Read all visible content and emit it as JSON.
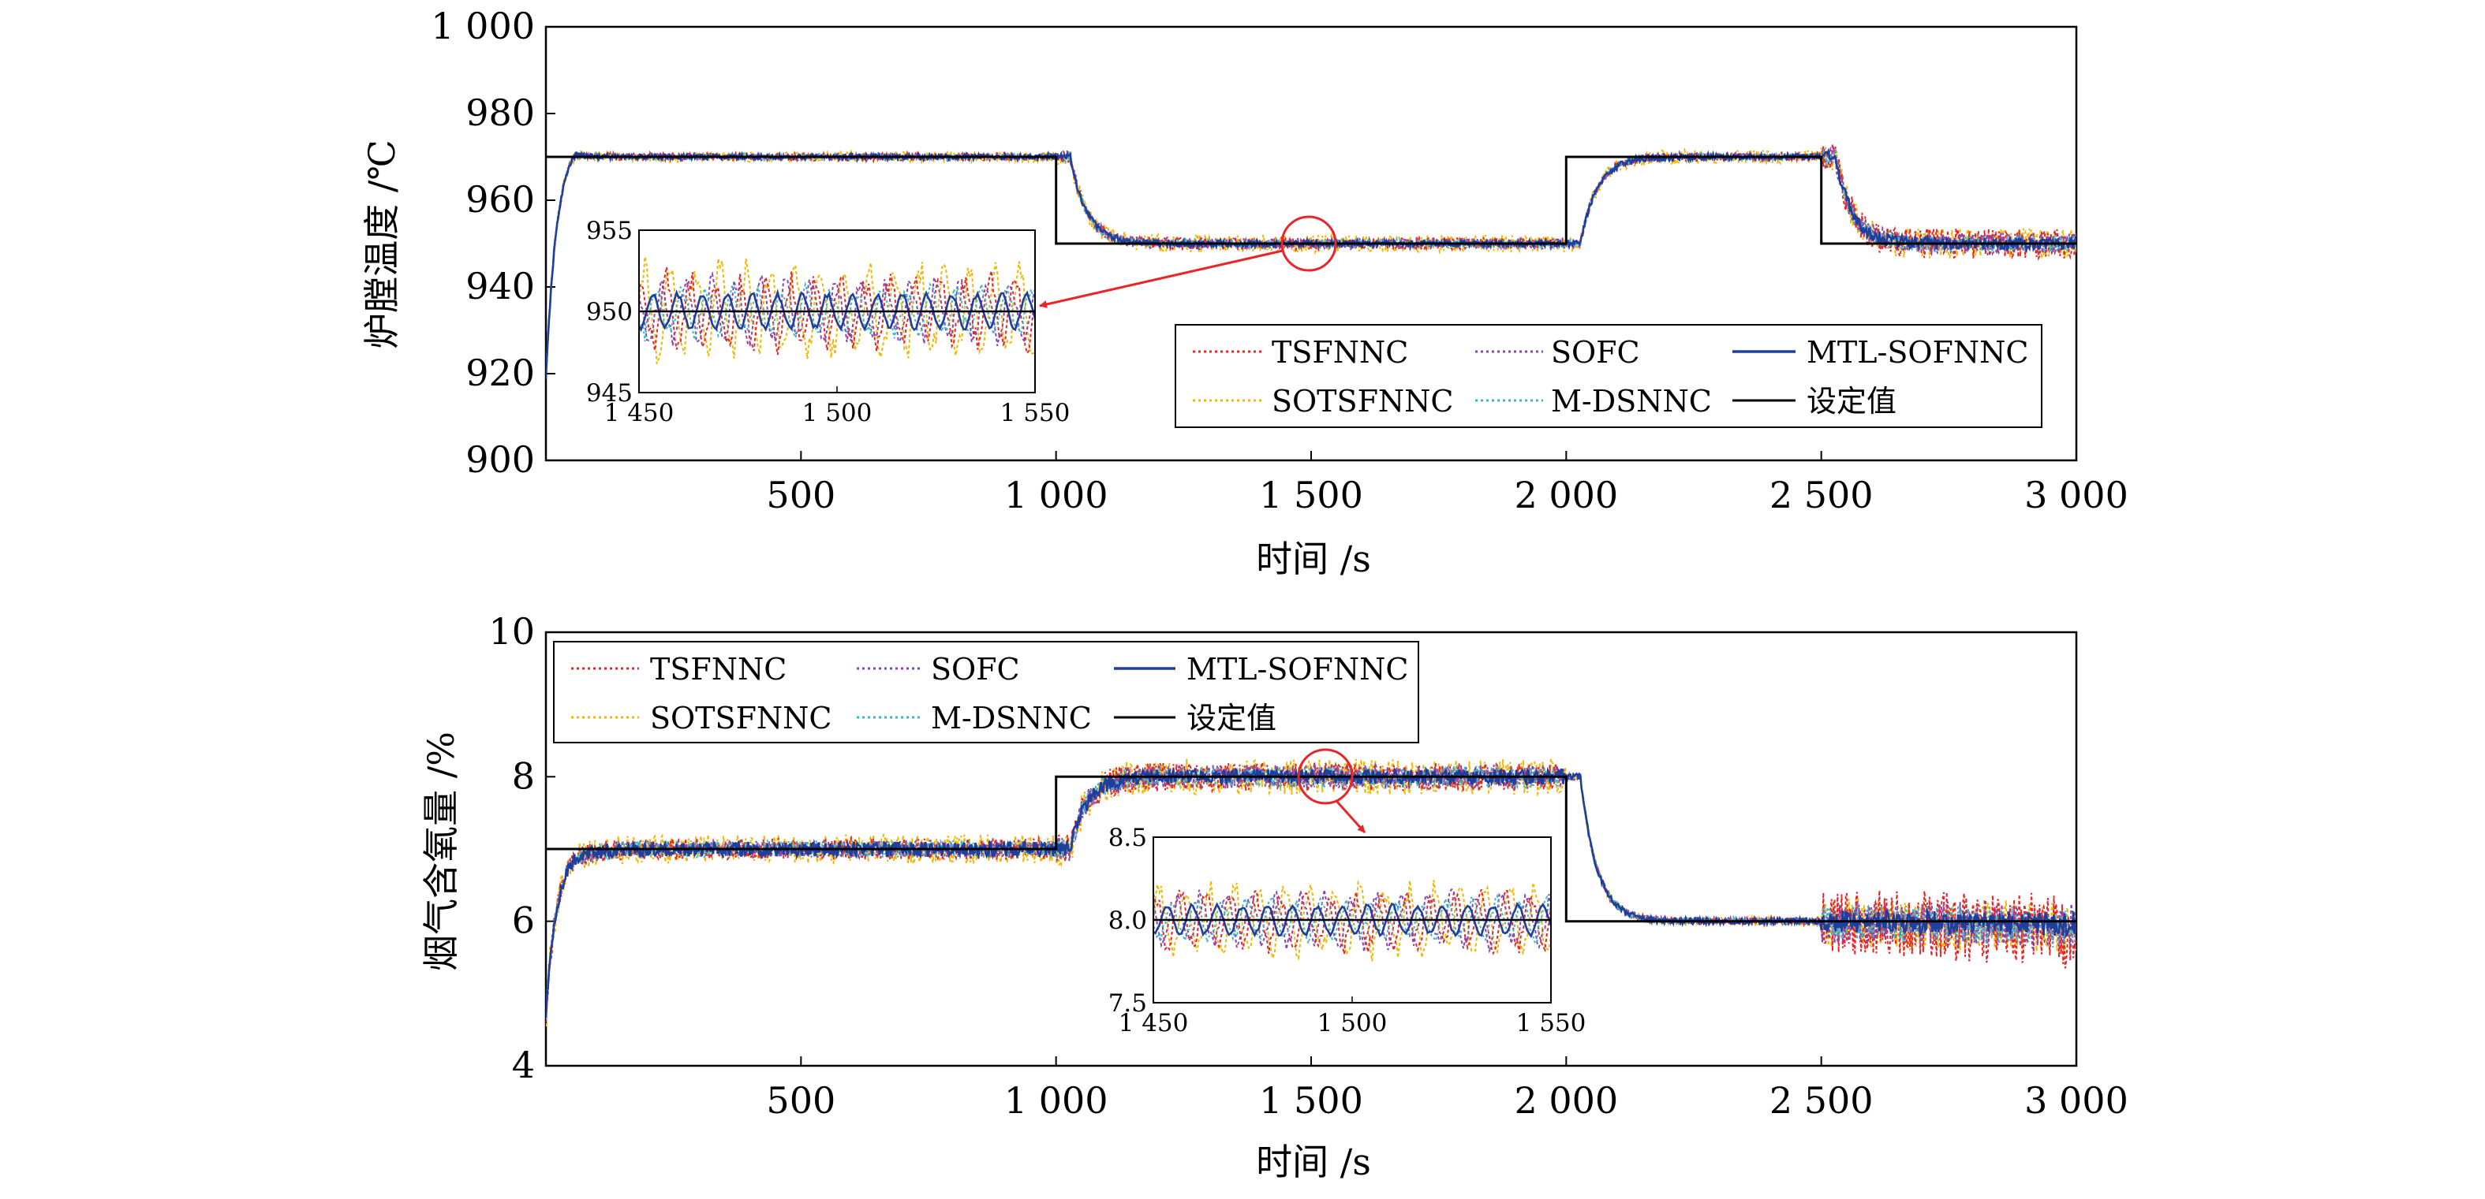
{
  "colors": {
    "TSFNNC": "#e8262a",
    "SOFC": "#8e44ad",
    "MTL-SOFNNC": "#1f3f9e",
    "SOTSFNNC": "#f2b705",
    "M-DSNNC": "#3fb7c9",
    "setpoint": "#000000",
    "callout": "#e8262a"
  },
  "chart_data": [
    {
      "type": "line",
      "title": "",
      "xlabel": "时间 /s",
      "ylabel": "炉膛温度 /℃",
      "xlim": [
        0,
        3000
      ],
      "ylim": [
        900,
        1000
      ],
      "xticks": [
        500,
        1000,
        1500,
        2000,
        2500,
        3000
      ],
      "xtick_labels": [
        "500",
        "1 000",
        "1 500",
        "2 000",
        "2 500",
        "3 000"
      ],
      "yticks": [
        900,
        920,
        940,
        960,
        980,
        1000
      ],
      "ytick_labels": [
        "900",
        "920",
        "940",
        "960",
        "980",
        "1 000"
      ],
      "legend_position": "lower-right",
      "legend": [
        {
          "label": "TSFNNC",
          "style": "dotted"
        },
        {
          "label": "SOFC",
          "style": "dotted"
        },
        {
          "label": "MTL-SOFNNC",
          "style": "solid"
        },
        {
          "label": "SOTSFNNC",
          "style": "dotted"
        },
        {
          "label": "M-DSNNC",
          "style": "dotted"
        },
        {
          "label": "设定值",
          "style": "solid"
        }
      ],
      "setpoint": {
        "x": [
          0,
          1000,
          1000,
          2000,
          2000,
          2500,
          2500,
          3000
        ],
        "y": [
          970,
          970,
          950,
          950,
          970,
          970,
          950,
          950
        ]
      },
      "initial": {
        "start": 913,
        "overshoot": 974
      },
      "series": [
        {
          "name": "TSFNNC",
          "segment_amplitude": [
            0.9,
            1.4,
            1.0,
            3.5
          ]
        },
        {
          "name": "SOFC",
          "segment_amplitude": [
            0.8,
            1.3,
            1.0,
            2.5
          ]
        },
        {
          "name": "MTL-SOFNNC",
          "segment_amplitude": [
            0.6,
            0.7,
            0.7,
            1.4
          ]
        },
        {
          "name": "SOTSFNNC",
          "segment_amplitude": [
            1.2,
            2.0,
            1.6,
            3.5
          ]
        },
        {
          "name": "M-DSNNC",
          "segment_amplitude": [
            0.7,
            1.0,
            0.8,
            2.0
          ]
        }
      ],
      "inset": {
        "xlim": [
          1450,
          1550
        ],
        "ylim": [
          945,
          955
        ],
        "xticks": [
          1450,
          1500,
          1550
        ],
        "xtick_labels": [
          "1 450",
          "1 500",
          "1 550"
        ],
        "yticks": [
          945,
          950,
          955
        ],
        "ytick_labels": [
          "945",
          "950",
          "955"
        ],
        "series_amplitude": {
          "TSFNNC": 2.3,
          "SOFC": 2.0,
          "MTL-SOFNNC": 1.2,
          "SOTSFNNC": 3.0,
          "M-DSNNC": 1.5
        }
      },
      "callout": {
        "x": 1500,
        "y": 950
      }
    },
    {
      "type": "line",
      "title": "",
      "xlabel": "时间 /s",
      "ylabel": "烟气含氧量 /%",
      "xlim": [
        0,
        3000
      ],
      "ylim": [
        4,
        10
      ],
      "xticks": [
        500,
        1000,
        1500,
        2000,
        2500,
        3000
      ],
      "xtick_labels": [
        "500",
        "1 000",
        "1 500",
        "2 000",
        "2 500",
        "3 000"
      ],
      "yticks": [
        4,
        6,
        8,
        10
      ],
      "ytick_labels": [
        "4",
        "6",
        "8",
        "10"
      ],
      "legend_position": "upper-left",
      "legend": [
        {
          "label": "TSFNNC",
          "style": "dotted"
        },
        {
          "label": "SOFC",
          "style": "dotted"
        },
        {
          "label": "MTL-SOFNNC",
          "style": "solid"
        },
        {
          "label": "SOTSFNNC",
          "style": "dotted"
        },
        {
          "label": "M-DSNNC",
          "style": "dotted"
        },
        {
          "label": "设定值",
          "style": "solid"
        }
      ],
      "setpoint": {
        "x": [
          0,
          1000,
          1000,
          2000,
          2000,
          3000
        ],
        "y": [
          7,
          7,
          8,
          8,
          6,
          6
        ]
      },
      "initial": {
        "start": 4.5,
        "overshoot": 7.0
      },
      "series": [
        {
          "name": "TSFNNC",
          "segment_amplitude": [
            0.15,
            0.2,
            0.05,
            0.45
          ]
        },
        {
          "name": "SOFC",
          "segment_amplitude": [
            0.12,
            0.17,
            0.05,
            0.3
          ]
        },
        {
          "name": "MTL-SOFNNC",
          "segment_amplitude": [
            0.1,
            0.1,
            0.04,
            0.15
          ]
        },
        {
          "name": "SOTSFNNC",
          "segment_amplitude": [
            0.2,
            0.25,
            0.06,
            0.35
          ]
        },
        {
          "name": "M-DSNNC",
          "segment_amplitude": [
            0.12,
            0.15,
            0.05,
            0.25
          ]
        }
      ],
      "inset": {
        "xlim": [
          1450,
          1550
        ],
        "ylim": [
          7.5,
          8.5
        ],
        "xticks": [
          1450,
          1500,
          1550
        ],
        "xtick_labels": [
          "1 450",
          "1 500",
          "1 550"
        ],
        "yticks": [
          7.5,
          8.0,
          8.5
        ],
        "ytick_labels": [
          "7.5",
          "8.0",
          "8.5"
        ],
        "series_amplitude": {
          "TSFNNC": 0.18,
          "SOFC": 0.17,
          "MTL-SOFNNC": 0.1,
          "SOTSFNNC": 0.22,
          "M-DSNNC": 0.13
        }
      },
      "callout": {
        "x": 1525,
        "y": 8.0
      }
    }
  ]
}
